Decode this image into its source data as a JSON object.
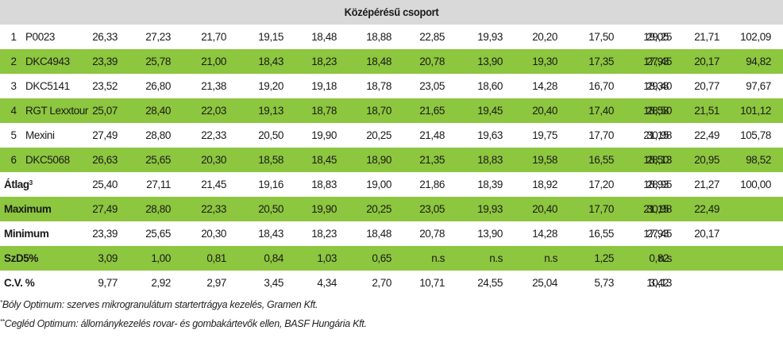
{
  "header": {
    "title": "Középérésű csoport"
  },
  "colors": {
    "green": "#8dc63f",
    "header_gray": "#d9d9d9"
  },
  "rows": [
    {
      "idx": "1",
      "name": "P0023",
      "values": [
        "26,33",
        "27,23",
        "21,70",
        "19,15",
        "18,48",
        "18,88",
        "22,85",
        "19,93",
        "20,20",
        "17,50",
        "19,05",
        "29,25",
        "21,71",
        "102,09"
      ],
      "style": "white"
    },
    {
      "idx": "2",
      "name": "DKC4943",
      "values": [
        "23,39",
        "25,78",
        "21,00",
        "18,43",
        "18,23",
        "18,48",
        "20,78",
        "13,90",
        "19,30",
        "17,35",
        "17,93",
        "27,45",
        "20,17",
        "94,82"
      ],
      "style": "green"
    },
    {
      "idx": "3",
      "name": "DKC5141",
      "values": [
        "23,52",
        "26,80",
        "21,38",
        "19,20",
        "19,18",
        "18,78",
        "23,05",
        "18,60",
        "14,28",
        "16,70",
        "18,38",
        "29,40",
        "20,77",
        "97,67"
      ],
      "style": "white"
    },
    {
      "idx": "4",
      "name": "RGT Lexxtour",
      "values": [
        "25,07",
        "28,40",
        "22,03",
        "19,13",
        "18,78",
        "18,70",
        "21,65",
        "19,45",
        "20,40",
        "17,40",
        "18,58",
        "28,50",
        "21,51",
        "101,12"
      ],
      "style": "green"
    },
    {
      "idx": "5",
      "name": "Mexini",
      "values": [
        "27,49",
        "28,80",
        "22,33",
        "20,50",
        "19,90",
        "20,25",
        "21,48",
        "19,63",
        "19,75",
        "17,70",
        "21,15",
        "30,98",
        "22,49",
        "105,78"
      ],
      "style": "white"
    },
    {
      "idx": "6",
      "name": "DKC5068",
      "values": [
        "26,63",
        "25,65",
        "20,30",
        "18,58",
        "18,45",
        "18,90",
        "21,35",
        "18,83",
        "19,58",
        "16,55",
        "18,50",
        "28,13",
        "20,95",
        "98,52"
      ],
      "style": "green"
    }
  ],
  "summary": [
    {
      "label": "Átlag",
      "sup": "3",
      "values": [
        "25,40",
        "27,11",
        "21,45",
        "19,16",
        "18,83",
        "19,00",
        "21,86",
        "18,39",
        "18,92",
        "17,20",
        "18,93",
        "28,95",
        "21,27",
        "100,00"
      ],
      "style": "white"
    },
    {
      "label": "Maximum",
      "sup": "",
      "values": [
        "27,49",
        "28,80",
        "22,33",
        "20,50",
        "19,90",
        "20,25",
        "23,05",
        "19,93",
        "20,40",
        "17,70",
        "21,15",
        "30,98",
        "22,49",
        ""
      ],
      "style": "green"
    },
    {
      "label": "Minimum",
      "sup": "",
      "values": [
        "23,39",
        "25,65",
        "20,30",
        "18,43",
        "18,23",
        "18,48",
        "20,78",
        "13,90",
        "14,28",
        "16,55",
        "17,93",
        "27,45",
        "20,17",
        ""
      ],
      "style": "white"
    },
    {
      "label": "SzD5%",
      "sup": "",
      "values": [
        "3,09",
        "1,00",
        "0,81",
        "0,84",
        "1,03",
        "0,65",
        "n.s",
        "n.s",
        "n.s",
        "1,25",
        "0,82",
        "n.s",
        "",
        ""
      ],
      "style": "green"
    },
    {
      "label": "C.V. %",
      "sup": "",
      "values": [
        "9,77",
        "2,92",
        "2,97",
        "3,45",
        "4,34",
        "2,70",
        "10,71",
        "24,55",
        "25,04",
        "5,73",
        "3,42",
        "10,13",
        "",
        ""
      ],
      "style": "white"
    }
  ],
  "footnotes": [
    {
      "mark": "*",
      "text": "Bóly Optimum: szerves mikrogranulátum startertrágya kezelés, Gramen Kft."
    },
    {
      "mark": "**",
      "text": "Cegléd Optimum: állománykezelés rovar- és gombakártevők ellen, BASF Hungária Kft."
    }
  ]
}
